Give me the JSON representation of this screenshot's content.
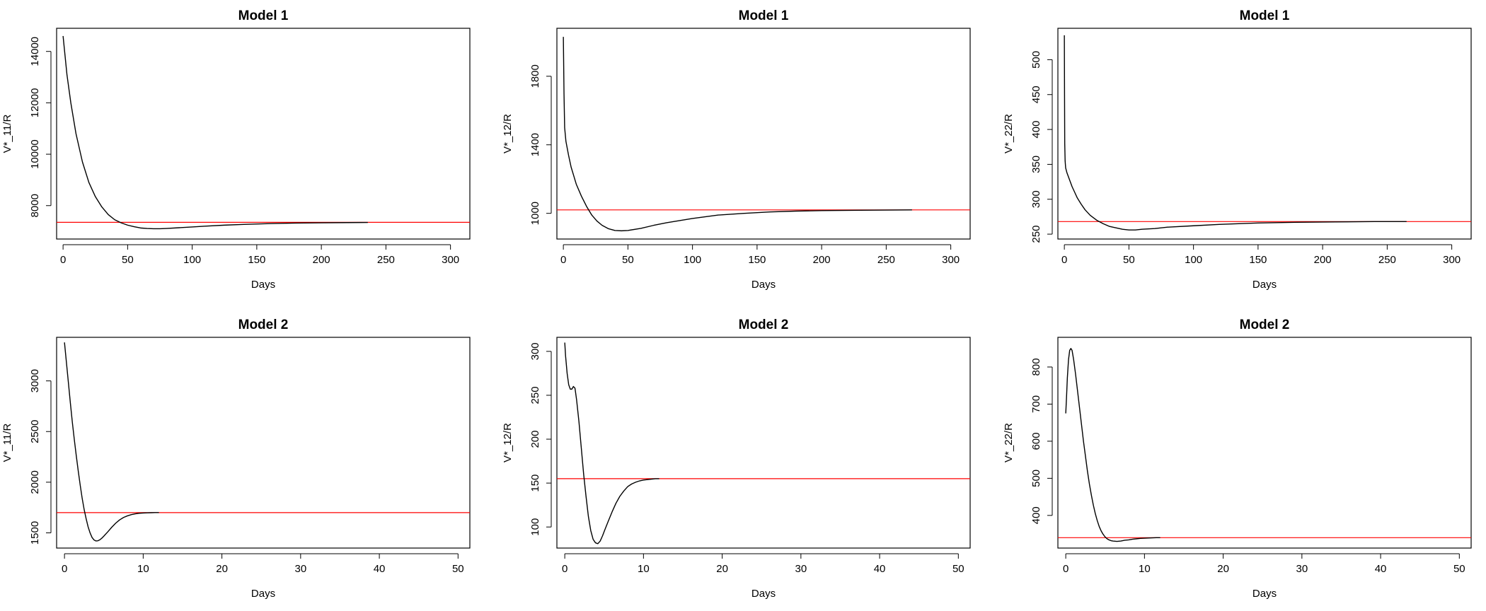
{
  "chart_data": [
    {
      "type": "line",
      "title": "Model 1",
      "xlabel": "Days",
      "ylabel": "V*_11/R",
      "xlim": [
        -5,
        315
      ],
      "ylim": [
        6700,
        14900
      ],
      "xticks": [
        0,
        50,
        100,
        150,
        200,
        250,
        300
      ],
      "yticks": [
        8000,
        10000,
        12000,
        14000
      ],
      "reference_line": {
        "color": "#ff0000",
        "y": 7350
      },
      "series": [
        {
          "x": [
            0,
            3,
            6,
            10,
            15,
            20,
            25,
            30,
            35,
            40,
            45,
            50,
            55,
            60,
            65,
            70,
            75,
            80,
            90,
            100,
            110,
            125,
            140,
            160,
            180,
            200,
            220,
            236
          ],
          "y": [
            14600,
            13100,
            12000,
            10800,
            9700,
            8900,
            8350,
            7950,
            7650,
            7450,
            7330,
            7240,
            7180,
            7130,
            7110,
            7100,
            7100,
            7110,
            7140,
            7170,
            7200,
            7240,
            7270,
            7300,
            7320,
            7330,
            7340,
            7345
          ]
        }
      ]
    },
    {
      "type": "line",
      "title": "Model 1",
      "xlabel": "Days",
      "ylabel": "V*_12/R",
      "xlim": [
        -5,
        315
      ],
      "ylim": [
        850,
        2080
      ],
      "xticks": [
        0,
        50,
        100,
        150,
        200,
        250,
        300
      ],
      "yticks": [
        1000,
        1400,
        1800
      ],
      "reference_line": {
        "color": "#ff0000",
        "y": 1020
      },
      "series": [
        {
          "x": [
            0,
            0.2,
            0.5,
            1,
            2,
            4,
            6,
            8,
            10,
            14,
            18,
            22,
            26,
            30,
            35,
            40,
            45,
            50,
            60,
            70,
            80,
            100,
            120,
            140,
            160,
            180,
            200,
            230,
            270
          ],
          "y": [
            2030,
            1900,
            1700,
            1500,
            1420,
            1340,
            1270,
            1220,
            1170,
            1100,
            1040,
            990,
            955,
            930,
            910,
            900,
            898,
            900,
            912,
            930,
            945,
            970,
            990,
            1000,
            1008,
            1013,
            1016,
            1018,
            1020
          ]
        }
      ]
    },
    {
      "type": "line",
      "title": "Model 1",
      "xlabel": "Days",
      "ylabel": "V*_22/R",
      "xlim": [
        -5,
        315
      ],
      "ylim": [
        243,
        545
      ],
      "xticks": [
        0,
        50,
        100,
        150,
        200,
        250,
        300
      ],
      "yticks": [
        250,
        300,
        350,
        400,
        450,
        500
      ],
      "reference_line": {
        "color": "#ff0000",
        "y": 268
      },
      "series": [
        {
          "x": [
            0,
            0.15,
            0.3,
            0.6,
            1,
            2,
            4,
            6,
            8,
            10,
            13,
            16,
            20,
            25,
            30,
            35,
            40,
            45,
            50,
            55,
            60,
            70,
            80,
            100,
            120,
            150,
            180,
            210,
            240,
            265
          ],
          "y": [
            535,
            450,
            380,
            355,
            345,
            338,
            328,
            318,
            310,
            302,
            293,
            285,
            277,
            270,
            265,
            261,
            259,
            257,
            256,
            256,
            257,
            258,
            260,
            262,
            264,
            266,
            267,
            267.5,
            268,
            268
          ]
        }
      ]
    },
    {
      "type": "line",
      "title": "Model 2",
      "xlabel": "Days",
      "ylabel": "V*_11/R",
      "xlim": [
        -1,
        51.5
      ],
      "ylim": [
        1350,
        3430
      ],
      "xticks": [
        0,
        10,
        20,
        30,
        40,
        50
      ],
      "yticks": [
        1500,
        2000,
        2500,
        3000
      ],
      "reference_line": {
        "color": "#ff0000",
        "y": 1700
      },
      "series": [
        {
          "x": [
            0,
            0.25,
            0.5,
            0.75,
            1,
            1.25,
            1.5,
            1.75,
            2,
            2.25,
            2.5,
            2.75,
            3,
            3.25,
            3.5,
            3.75,
            4,
            4.25,
            4.5,
            4.75,
            5,
            5.5,
            6,
            6.5,
            7,
            7.5,
            8,
            8.5,
            9,
            9.5,
            10,
            10.5,
            11,
            11.5,
            12
          ],
          "y": [
            3380,
            3180,
            2980,
            2780,
            2590,
            2420,
            2260,
            2110,
            1970,
            1840,
            1730,
            1640,
            1560,
            1500,
            1455,
            1430,
            1420,
            1422,
            1432,
            1448,
            1468,
            1510,
            1555,
            1595,
            1628,
            1652,
            1668,
            1680,
            1688,
            1693,
            1696,
            1698,
            1699,
            1700,
            1700
          ]
        }
      ]
    },
    {
      "type": "line",
      "title": "Model 2",
      "xlabel": "Days",
      "ylabel": "V*_12/R",
      "xlim": [
        -1,
        51.5
      ],
      "ylim": [
        76,
        316
      ],
      "xticks": [
        0,
        10,
        20,
        30,
        40,
        50
      ],
      "yticks": [
        100,
        150,
        200,
        250,
        300
      ],
      "reference_line": {
        "color": "#ff0000",
        "y": 155
      },
      "series": [
        {
          "x": [
            0,
            0.1,
            0.3,
            0.5,
            0.7,
            0.9,
            1.1,
            1.3,
            1.5,
            1.8,
            2.1,
            2.4,
            2.7,
            3,
            3.3,
            3.6,
            3.9,
            4.2,
            4.5,
            4.8,
            5.1,
            5.5,
            6,
            6.5,
            7,
            7.5,
            8,
            8.5,
            9,
            9.5,
            10,
            10.5,
            11,
            11.5,
            12
          ],
          "y": [
            310,
            295,
            275,
            262,
            257,
            257,
            260,
            258,
            245,
            220,
            190,
            160,
            135,
            112,
            96,
            86,
            82,
            81,
            84,
            90,
            97,
            106,
            117,
            127,
            135,
            141,
            146,
            149,
            151,
            152.5,
            153.5,
            154,
            154.5,
            155,
            155
          ]
        }
      ]
    },
    {
      "type": "line",
      "title": "Model 2",
      "xlabel": "Days",
      "ylabel": "V*_22/R",
      "xlim": [
        -1,
        51.5
      ],
      "ylim": [
        312,
        880
      ],
      "xticks": [
        0,
        10,
        20,
        30,
        40,
        50
      ],
      "yticks": [
        400,
        500,
        600,
        700,
        800
      ],
      "reference_line": {
        "color": "#ff0000",
        "y": 340
      },
      "series": [
        {
          "x": [
            0,
            0.1,
            0.2,
            0.35,
            0.5,
            0.65,
            0.8,
            1,
            1.25,
            1.5,
            1.75,
            2,
            2.25,
            2.5,
            2.75,
            3,
            3.25,
            3.5,
            3.75,
            4,
            4.25,
            4.5,
            4.75,
            5,
            5.25,
            5.5,
            5.75,
            6,
            6.5,
            7,
            7.5,
            8,
            8.5,
            9,
            9.5,
            10,
            10.5,
            11,
            11.5,
            12
          ],
          "y": [
            675,
            720,
            770,
            820,
            845,
            850,
            845,
            820,
            780,
            735,
            690,
            645,
            600,
            560,
            520,
            485,
            455,
            428,
            405,
            386,
            370,
            358,
            349,
            342,
            337,
            334,
            332,
            331,
            330,
            331,
            333,
            334,
            336,
            337,
            338,
            338.5,
            339,
            339.5,
            340,
            340
          ]
        }
      ]
    }
  ]
}
